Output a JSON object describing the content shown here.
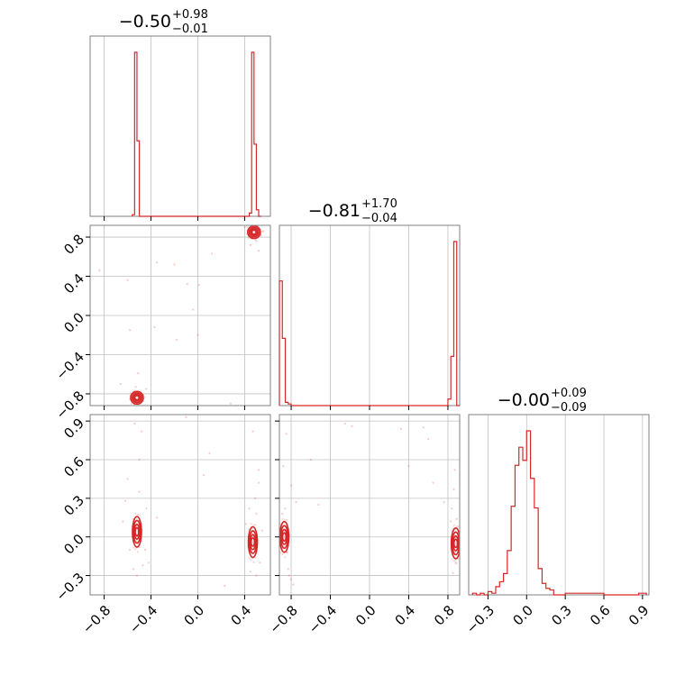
{
  "colors": {
    "series": "#d62728",
    "grid": "#c0c0c0",
    "frame": "#808080"
  },
  "chart_data": {
    "type": "corner",
    "parameters": 3,
    "titles": [
      {
        "value": "−0.50",
        "upper": "+0.98",
        "lower": "−0.01"
      },
      {
        "value": "−0.81",
        "upper": "+1.70",
        "lower": "−0.04"
      },
      {
        "value": "−0.00",
        "upper": "+0.09",
        "lower": "−0.09"
      }
    ],
    "ranges": [
      [
        -0.92,
        0.62
      ],
      [
        -0.92,
        0.92
      ],
      [
        -0.45,
        0.95
      ]
    ],
    "ticks": [
      {
        "values": [
          -0.8,
          -0.4,
          0.0,
          0.4
        ],
        "labels": [
          "−0.8",
          "−0.4",
          "0.0",
          "0.4"
        ]
      },
      {
        "values": [
          -0.8,
          -0.4,
          0.0,
          0.4,
          0.8
        ],
        "labels": [
          "−0.8",
          "−0.4",
          "0.0",
          "0.4",
          "0.8"
        ]
      },
      {
        "values": [
          -0.3,
          0.0,
          0.3,
          0.6,
          0.9
        ],
        "labels": [
          "−0.3",
          "0.0",
          "0.3",
          "0.6",
          "0.9"
        ]
      }
    ],
    "histograms": [
      {
        "bin_edges": [
          -0.56,
          -0.54,
          -0.52,
          -0.5,
          -0.48,
          0.44,
          0.46,
          0.48,
          0.5,
          0.52,
          0.54
        ],
        "counts": [
          0.01,
          1.0,
          0.46,
          0.0,
          0.0,
          0.02,
          1.0,
          0.44,
          0.04,
          0.0
        ]
      },
      {
        "bin_edges": [
          -0.92,
          -0.89,
          -0.86,
          -0.83,
          -0.8,
          0.8,
          0.83,
          0.86,
          0.89,
          0.92
        ],
        "counts": [
          0.76,
          0.41,
          0.02,
          0.01,
          0.0,
          0.04,
          0.3,
          1.0,
          0.0
        ]
      },
      {
        "bin_edges": [
          -0.42,
          -0.39,
          -0.36,
          -0.33,
          -0.3,
          -0.27,
          -0.24,
          -0.21,
          -0.18,
          -0.15,
          -0.12,
          -0.09,
          -0.06,
          -0.03,
          0.0,
          0.03,
          0.06,
          0.09,
          0.12,
          0.15,
          0.18,
          0.21,
          0.24,
          0.27,
          0.3,
          0.6,
          0.63,
          0.87,
          0.9,
          0.93
        ],
        "counts": [
          0.01,
          0.0,
          0.01,
          0.0,
          0.02,
          0.01,
          0.05,
          0.08,
          0.13,
          0.27,
          0.54,
          0.79,
          0.9,
          0.82,
          1.0,
          0.71,
          0.53,
          0.16,
          0.07,
          0.04,
          0.03,
          0.0,
          0.0,
          0.0,
          0.01,
          0.0,
          0.0,
          0.01,
          0.01
        ]
      }
    ],
    "pairs": [
      {
        "x": 0,
        "y": 1,
        "clusters": [
          {
            "cx": -0.52,
            "cy": -0.84
          },
          {
            "cx": 0.48,
            "cy": 0.85
          }
        ],
        "scatter": [
          [
            -0.84,
            0.46
          ],
          [
            -0.6,
            0.36
          ],
          [
            -0.51,
            -0.59
          ],
          [
            -0.58,
            -0.15
          ],
          [
            -0.37,
            -0.12
          ],
          [
            -0.35,
            0.54
          ],
          [
            -0.18,
            -0.25
          ],
          [
            -0.09,
            0.32
          ],
          [
            -0.04,
            0.06
          ],
          [
            -0.0,
            -0.2
          ],
          [
            0.01,
            0.31
          ],
          [
            0.12,
            0.63
          ],
          [
            0.28,
            -0.9
          ],
          [
            0.52,
            0.66
          ],
          [
            0.45,
            0.72
          ],
          [
            -0.2,
            0.52
          ],
          [
            -0.44,
            -0.75
          ],
          [
            -0.66,
            -0.7
          ],
          [
            0.5,
            0.76
          ],
          [
            -0.55,
            -0.78
          ],
          [
            -0.48,
            -0.87
          ],
          [
            0.52,
            0.88
          ],
          [
            0.43,
            0.87
          ],
          [
            -0.53,
            -0.73
          ],
          [
            0.47,
            0.8
          ],
          [
            0.54,
            0.82
          ],
          [
            -0.49,
            -0.83
          ],
          [
            -0.57,
            -0.86
          ],
          [
            0.56,
            0.86
          ],
          [
            0.4,
            0.9
          ]
        ]
      },
      {
        "x": 0,
        "y": 2,
        "clusters": [
          {
            "cx": -0.52,
            "cy": 0.04
          },
          {
            "cx": 0.47,
            "cy": -0.04
          }
        ],
        "scatter": [
          [
            -0.54,
            0.88
          ],
          [
            -0.48,
            0.82
          ],
          [
            -0.6,
            0.45
          ],
          [
            -0.5,
            0.35
          ],
          [
            -0.44,
            0.22
          ],
          [
            -0.55,
            -0.25
          ],
          [
            -0.52,
            -0.3
          ],
          [
            -0.47,
            -0.22
          ],
          [
            -0.62,
            0.28
          ],
          [
            -0.35,
            0.15
          ],
          [
            0.05,
            0.48
          ],
          [
            0.1,
            0.65
          ],
          [
            -0.1,
            0.93
          ],
          [
            0.52,
            0.52
          ],
          [
            0.49,
            0.3
          ],
          [
            0.44,
            0.22
          ],
          [
            0.5,
            -0.3
          ],
          [
            0.45,
            -0.27
          ],
          [
            0.41,
            0.1
          ],
          [
            0.55,
            0.05
          ],
          [
            0.52,
            0.42
          ],
          [
            -0.42,
            -0.2
          ],
          [
            0.47,
            0.82
          ],
          [
            0.23,
            -0.38
          ],
          [
            -0.64,
            0.12
          ],
          [
            -0.58,
            -0.1
          ],
          [
            0.5,
            0.18
          ],
          [
            0.53,
            -0.2
          ],
          [
            -0.5,
            0.6
          ],
          [
            -0.45,
            -0.1
          ]
        ]
      },
      {
        "x": 1,
        "y": 2,
        "clusters": [
          {
            "cx": -0.87,
            "cy": 0.0
          },
          {
            "cx": 0.88,
            "cy": -0.05
          }
        ],
        "scatter": [
          [
            -0.88,
            0.55
          ],
          [
            -0.85,
            0.8
          ],
          [
            -0.83,
            -0.25
          ],
          [
            -0.82,
            -0.3
          ],
          [
            -0.8,
            -0.33
          ],
          [
            -0.78,
            -0.37
          ],
          [
            -0.75,
            0.27
          ],
          [
            -0.52,
            0.25
          ],
          [
            -0.25,
            0.88
          ],
          [
            -0.18,
            0.86
          ],
          [
            0.32,
            0.84
          ],
          [
            0.6,
            0.76
          ],
          [
            0.65,
            0.42
          ],
          [
            0.76,
            0.27
          ],
          [
            0.84,
            0.22
          ],
          [
            0.86,
            0.37
          ],
          [
            0.87,
            0.52
          ],
          [
            0.88,
            -0.2
          ],
          [
            0.85,
            -0.28
          ],
          [
            0.89,
            0.14
          ],
          [
            -0.86,
            0.22
          ],
          [
            -0.84,
            -0.12
          ],
          [
            0.86,
            0.06
          ],
          [
            0.9,
            -0.1
          ],
          [
            0.83,
            0.12
          ],
          [
            -0.89,
            0.18
          ],
          [
            -0.8,
            0.4
          ],
          [
            0.55,
            0.85
          ],
          [
            -0.6,
            0.6
          ],
          [
            0.4,
            0.55
          ]
        ]
      }
    ]
  }
}
